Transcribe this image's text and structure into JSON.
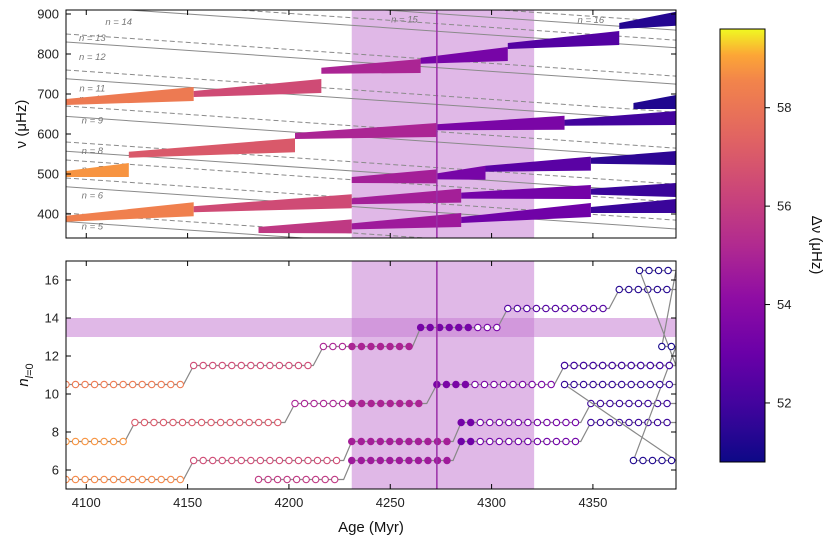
{
  "chart_data": [
    {
      "type": "scatter",
      "panel": "top",
      "xlabel": "",
      "ylabel": "ν (μHz)",
      "xlim": [
        4090,
        4391
      ],
      "ylim": [
        340,
        910
      ],
      "yticks": [
        400,
        500,
        600,
        700,
        800,
        900
      ],
      "shaded_age_range": [
        4231,
        4321
      ],
      "marked_age": 4273,
      "n_labels": [
        {
          "label": "n = 5",
          "x": 4103,
          "y": 369
        },
        {
          "label": "n = 6",
          "x": 4103,
          "y": 446
        },
        {
          "label": "n = 7",
          "x": 4103,
          "y": 511
        },
        {
          "label": "n = 8",
          "x": 4103,
          "y": 558
        },
        {
          "label": "n = 9",
          "x": 4103,
          "y": 634
        },
        {
          "label": "n = 10",
          "x": 4103,
          "y": 687
        },
        {
          "label": "n = 11",
          "x": 4103,
          "y": 714
        },
        {
          "label": "n = 12",
          "x": 4103,
          "y": 792
        },
        {
          "label": "n = 13",
          "x": 4103,
          "y": 840
        },
        {
          "label": "n = 14",
          "x": 4116,
          "y": 880
        },
        {
          "label": "n = 15",
          "x": 4257,
          "y": 886
        },
        {
          "label": "n = 16",
          "x": 4349,
          "y": 885
        }
      ],
      "grid_lines": {
        "slope_per_myr": -0.35,
        "solid_intercepts_at_4090": [
          381,
          468,
          557,
          644,
          738,
          830,
          921,
          965
        ],
        "dashed_intercepts_at_4090": [
          402,
          490,
          535,
          580,
          670,
          760,
          850,
          940,
          985
        ]
      },
      "series": [
        {
          "name": "segment",
          "x0": 4090,
          "x1": 4153,
          "v0": 388,
          "v1": 412,
          "dnu": 58.4
        },
        {
          "name": "segment",
          "x0": 4153,
          "x1": 4231,
          "v0": 412,
          "v1": 432,
          "dnu": 56.5
        },
        {
          "name": "segment",
          "x0": 4231,
          "x1": 4285,
          "v0": 432,
          "v1": 446,
          "dnu": 54.8
        },
        {
          "name": "segment",
          "x0": 4285,
          "x1": 4349,
          "v0": 446,
          "v1": 455,
          "dnu": 53.3
        },
        {
          "name": "segment",
          "x0": 4349,
          "x1": 4391,
          "v0": 456,
          "v1": 460,
          "dnu": 51.8
        },
        {
          "name": "segment",
          "x0": 4185,
          "x1": 4231,
          "v0": 360,
          "v1": 369,
          "dnu": 55.8
        },
        {
          "name": "segment",
          "x0": 4231,
          "x1": 4285,
          "v0": 369,
          "v1": 385,
          "dnu": 54.6
        },
        {
          "name": "segment",
          "x0": 4285,
          "x1": 4349,
          "v0": 385,
          "v1": 410,
          "dnu": 53.2
        },
        {
          "name": "segment",
          "x0": 4349,
          "x1": 4391,
          "v0": 410,
          "v1": 420,
          "dnu": 51.8
        },
        {
          "name": "segment",
          "x0": 4090,
          "x1": 4121,
          "v0": 500,
          "v1": 510,
          "dnu": 58.8
        },
        {
          "name": "segment",
          "x0": 4121,
          "x1": 4203,
          "v0": 548,
          "v1": 572,
          "dnu": 57.0
        },
        {
          "name": "segment",
          "x0": 4203,
          "x1": 4273,
          "v0": 595,
          "v1": 610,
          "dnu": 55.0
        },
        {
          "name": "segment",
          "x0": 4273,
          "x1": 4336,
          "v0": 617,
          "v1": 628,
          "dnu": 53.5
        },
        {
          "name": "segment",
          "x0": 4336,
          "x1": 4391,
          "v0": 628,
          "v1": 640,
          "dnu": 52.0
        },
        {
          "name": "segment",
          "x0": 4231,
          "x1": 4273,
          "v0": 485,
          "v1": 494,
          "dnu": 54.8
        },
        {
          "name": "segment",
          "x0": 4273,
          "x1": 4297,
          "v0": 494,
          "v1": 503,
          "dnu": 53.4
        },
        {
          "name": "segment",
          "x0": 4297,
          "x1": 4349,
          "v0": 513,
          "v1": 526,
          "dnu": 52.6
        },
        {
          "name": "segment",
          "x0": 4349,
          "x1": 4391,
          "v0": 533,
          "v1": 540,
          "dnu": 51.5
        },
        {
          "name": "segment",
          "x0": 4090,
          "x1": 4153,
          "v0": 680,
          "v1": 700,
          "dnu": 58.2
        },
        {
          "name": "segment",
          "x0": 4153,
          "x1": 4216,
          "v0": 700,
          "v1": 720,
          "dnu": 56.5
        },
        {
          "name": "segment",
          "x0": 4216,
          "x1": 4265,
          "v0": 758,
          "v1": 770,
          "dnu": 55.0
        },
        {
          "name": "segment",
          "x0": 4265,
          "x1": 4308,
          "v0": 783,
          "v1": 800,
          "dnu": 53.4
        },
        {
          "name": "segment",
          "x0": 4308,
          "x1": 4363,
          "v0": 820,
          "v1": 840,
          "dnu": 52.4
        },
        {
          "name": "segment",
          "x0": 4363,
          "x1": 4391,
          "v0": 870,
          "v1": 888,
          "dnu": 51.3
        },
        {
          "name": "segment",
          "x0": 4370,
          "x1": 4391,
          "v0": 670,
          "v1": 680,
          "dnu": 51.2
        }
      ]
    },
    {
      "type": "scatter",
      "panel": "bottom",
      "xlabel": "Age (Myr)",
      "ylabel": "n_l=0",
      "xlim": [
        4090,
        4391
      ],
      "ylim": [
        5,
        17
      ],
      "xticks": [
        4100,
        4150,
        4200,
        4250,
        4300,
        4350
      ],
      "yticks": [
        6,
        8,
        10,
        12,
        14,
        16
      ],
      "shaded_age_range": [
        4231,
        4321
      ],
      "shaded_n_range": [
        13,
        14
      ],
      "marked_age": 4273,
      "marker_step_myr": 4.7,
      "series": [
        {
          "name": "track",
          "steps": [
            {
              "x0": 4090,
              "x1": 4148,
              "n": 5.5,
              "dnu": 58.6
            },
            {
              "x0": 4153,
              "x1": 4227,
              "n": 6.5,
              "dnu": 56.5
            },
            {
              "x0": 4231,
              "x1": 4281,
              "n": 7.5,
              "dnu": 54.8
            },
            {
              "x0": 4285,
              "x1": 4344,
              "n": 8.5,
              "dnu": 53.3
            },
            {
              "x0": 4349,
              "x1": 4391,
              "n": 9.5,
              "dnu": 51.8
            }
          ]
        },
        {
          "name": "track",
          "steps": [
            {
              "x0": 4090,
              "x1": 4119,
              "n": 7.5,
              "dnu": 58.8
            },
            {
              "x0": 4124,
              "x1": 4198,
              "n": 8.5,
              "dnu": 57.0
            },
            {
              "x0": 4203,
              "x1": 4268,
              "n": 9.5,
              "dnu": 55.0
            },
            {
              "x0": 4273,
              "x1": 4331,
              "n": 10.5,
              "dnu": 53.5
            },
            {
              "x0": 4336,
              "x1": 4391,
              "n": 11.5,
              "dnu": 52.0
            }
          ]
        },
        {
          "name": "track",
          "steps": [
            {
              "x0": 4090,
              "x1": 4148,
              "n": 10.5,
              "dnu": 58.2
            },
            {
              "x0": 4153,
              "x1": 4212,
              "n": 11.5,
              "dnu": 56.5
            },
            {
              "x0": 4217,
              "x1": 4261,
              "n": 12.5,
              "dnu": 55.0
            },
            {
              "x0": 4265,
              "x1": 4303,
              "n": 13.5,
              "dnu": 53.4
            },
            {
              "x0": 4308,
              "x1": 4358,
              "n": 14.5,
              "dnu": 52.4
            },
            {
              "x0": 4363,
              "x1": 4391,
              "n": 15.5,
              "dnu": 51.3
            }
          ]
        },
        {
          "name": "track",
          "steps": [
            {
              "x0": 4185,
              "x1": 4227,
              "n": 5.5,
              "dnu": 55.8
            },
            {
              "x0": 4231,
              "x1": 4281,
              "n": 6.5,
              "dnu": 54.6
            },
            {
              "x0": 4285,
              "x1": 4344,
              "n": 7.5,
              "dnu": 53.2
            },
            {
              "x0": 4349,
              "x1": 4391,
              "n": 8.5,
              "dnu": 51.8
            }
          ]
        },
        {
          "name": "track",
          "steps": [
            {
              "x0": 4336,
              "x1": 4391,
              "n": 11.5,
              "dnu": 51.9
            },
            {
              "x0": 4373,
              "x1": 4391,
              "n": 16.5,
              "dnu": 51.1
            },
            {
              "x0": 4384,
              "x1": 4391,
              "n": 12.5,
              "dnu": 51.0
            },
            {
              "x0": 4370,
              "x1": 4391,
              "n": 6.5,
              "dnu": 51.2
            },
            {
              "x0": 4336,
              "x1": 4391,
              "n": 10.5,
              "dnu": 51.6
            }
          ]
        }
      ]
    }
  ],
  "colorbar": {
    "label": "Δν (μHz)",
    "range": [
      50.8,
      59.6
    ],
    "ticks": [
      52,
      54,
      56,
      58
    ],
    "colormap": "plasma"
  },
  "colors": {
    "shade": "#c77dd3",
    "marked_line": "#9b2fa8",
    "grid_line": "#8a8a8a"
  }
}
